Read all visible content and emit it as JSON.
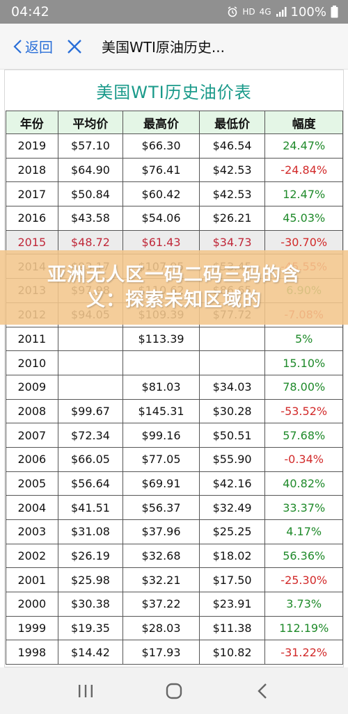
{
  "status_bar": {
    "time": "04:42",
    "network": "HD",
    "signal": "4G",
    "battery": "100%"
  },
  "app_bar": {
    "back_label": "返回",
    "title": "美国WTI原油历史..."
  },
  "table": {
    "title": "美国WTI历史油价表",
    "headers": [
      "年份",
      "平均价",
      "最高价",
      "最低价",
      "幅度"
    ],
    "rows": [
      [
        "2019",
        "$57.10",
        "$66.30",
        "$46.54",
        "24.47%"
      ],
      [
        "2018",
        "$64.90",
        "$76.41",
        "$42.53",
        "-24.84%"
      ],
      [
        "2017",
        "$50.84",
        "$60.42",
        "$42.53",
        "12.47%"
      ],
      [
        "2016",
        "$43.58",
        "$54.06",
        "$26.21",
        "45.03%"
      ],
      [
        "2015",
        "$48.72",
        "$61.43",
        "$34.73",
        "-30.70%"
      ],
      [
        "2014",
        "$93.17",
        "$107.95",
        "$53.45",
        "-45.55%"
      ],
      [
        "2013",
        "$97.98",
        "$110.62",
        "$86.65",
        "6.90%"
      ],
      [
        "2012",
        "$94.05",
        "$109.39",
        "$77.72",
        "-7.08%"
      ],
      [
        "2011",
        "",
        "$113.39",
        "",
        "5%"
      ],
      [
        "2010",
        "",
        "",
        "",
        "15.10%"
      ],
      [
        "2009",
        "",
        "$81.03",
        "$34.03",
        "78.00%"
      ],
      [
        "2008",
        "$99.67",
        "$145.31",
        "$30.28",
        "-53.52%"
      ],
      [
        "2007",
        "$72.34",
        "$99.16",
        "$50.51",
        "57.68%"
      ],
      [
        "2006",
        "$66.05",
        "$77.05",
        "$55.90",
        "-0.34%"
      ],
      [
        "2005",
        "$56.64",
        "$69.91",
        "$42.16",
        "40.82%"
      ],
      [
        "2004",
        "$41.51",
        "$56.37",
        "$32.49",
        "33.37%"
      ],
      [
        "2003",
        "$31.08",
        "$37.96",
        "$25.25",
        "4.17%"
      ],
      [
        "2002",
        "$26.19",
        "$32.68",
        "$18.02",
        "56.36%"
      ],
      [
        "2001",
        "$25.98",
        "$32.21",
        "$17.50",
        "-25.30%"
      ],
      [
        "2000",
        "$30.38",
        "$37.22",
        "$23.91",
        "3.73%"
      ],
      [
        "1999",
        "$19.35",
        "$28.03",
        "$11.38",
        "112.19%"
      ],
      [
        "1998",
        "$14.42",
        "$17.93",
        "$10.82",
        "-31.22%"
      ]
    ],
    "highlight_year": "2015",
    "colors": {
      "up": "#1f8a2a",
      "down": "#d22a2a",
      "highlight": "#c0283a",
      "title": "#1a9a8a",
      "header_bg": "#e4f6e6"
    }
  },
  "overlay": {
    "text": "亚洲无人区一码二码三码的含义：探索未知区域的"
  },
  "nav_bar": {
    "icons": [
      "recent-apps-icon",
      "home-icon",
      "back-nav-icon"
    ]
  }
}
